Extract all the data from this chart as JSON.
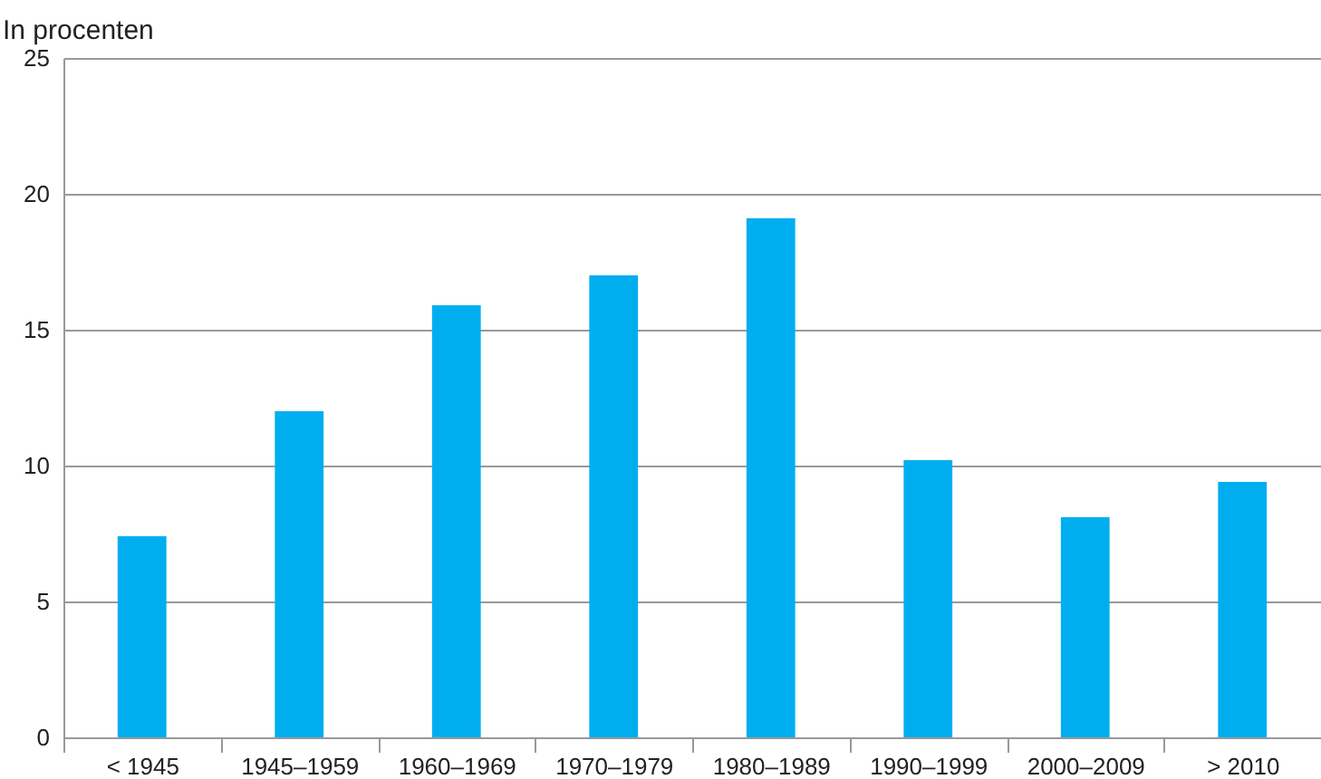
{
  "chart_data": {
    "type": "bar",
    "ylabel": "In procenten",
    "categories": [
      "< 1945",
      "1945–1959",
      "1960–1969",
      "1970–1979",
      "1980–1989",
      "1990–1999",
      "2000–2009",
      "> 2010"
    ],
    "values": [
      7.4,
      12.0,
      15.9,
      17.0,
      19.1,
      10.2,
      8.1,
      9.4
    ],
    "color": "#00aeef",
    "ylim": [
      0,
      25
    ],
    "yticks": [
      0,
      5,
      10,
      15,
      20,
      25
    ],
    "grid": "y"
  }
}
